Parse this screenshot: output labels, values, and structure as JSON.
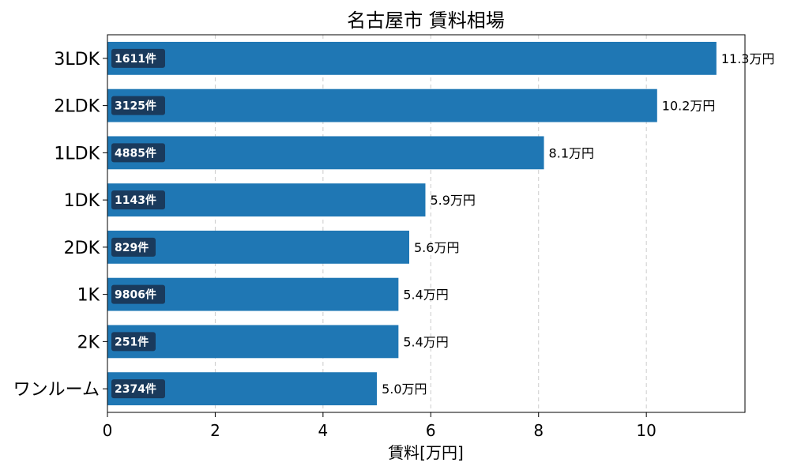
{
  "chart_data": {
    "type": "bar",
    "orientation": "horizontal",
    "title": "名古屋市 賃料相場",
    "xlabel": "賃料[万円]",
    "ylabel": "",
    "xlim": [
      0,
      11.83
    ],
    "xticks": [
      0,
      2,
      4,
      6,
      8,
      10
    ],
    "grid": "x-dashed",
    "categories": [
      "3LDK",
      "2LDK",
      "1LDK",
      "1DK",
      "2DK",
      "1K",
      "2K",
      "ワンルーム"
    ],
    "values": [
      11.3,
      10.2,
      8.1,
      5.9,
      5.6,
      5.4,
      5.4,
      5.0
    ],
    "value_labels": [
      "11.3万円",
      "10.2万円",
      "8.1万円",
      "5.9万円",
      "5.6万円",
      "5.4万円",
      "5.4万円",
      "5.0万円"
    ],
    "counts": [
      "1611件",
      "3125件",
      "4885件",
      "1143件",
      "829件",
      "9806件",
      "251件",
      "2374件"
    ],
    "colors": {
      "bar": "#1f77b4",
      "count_badge": "#1a3a5c",
      "grid": "#cccccc",
      "axis": "#000000"
    }
  }
}
